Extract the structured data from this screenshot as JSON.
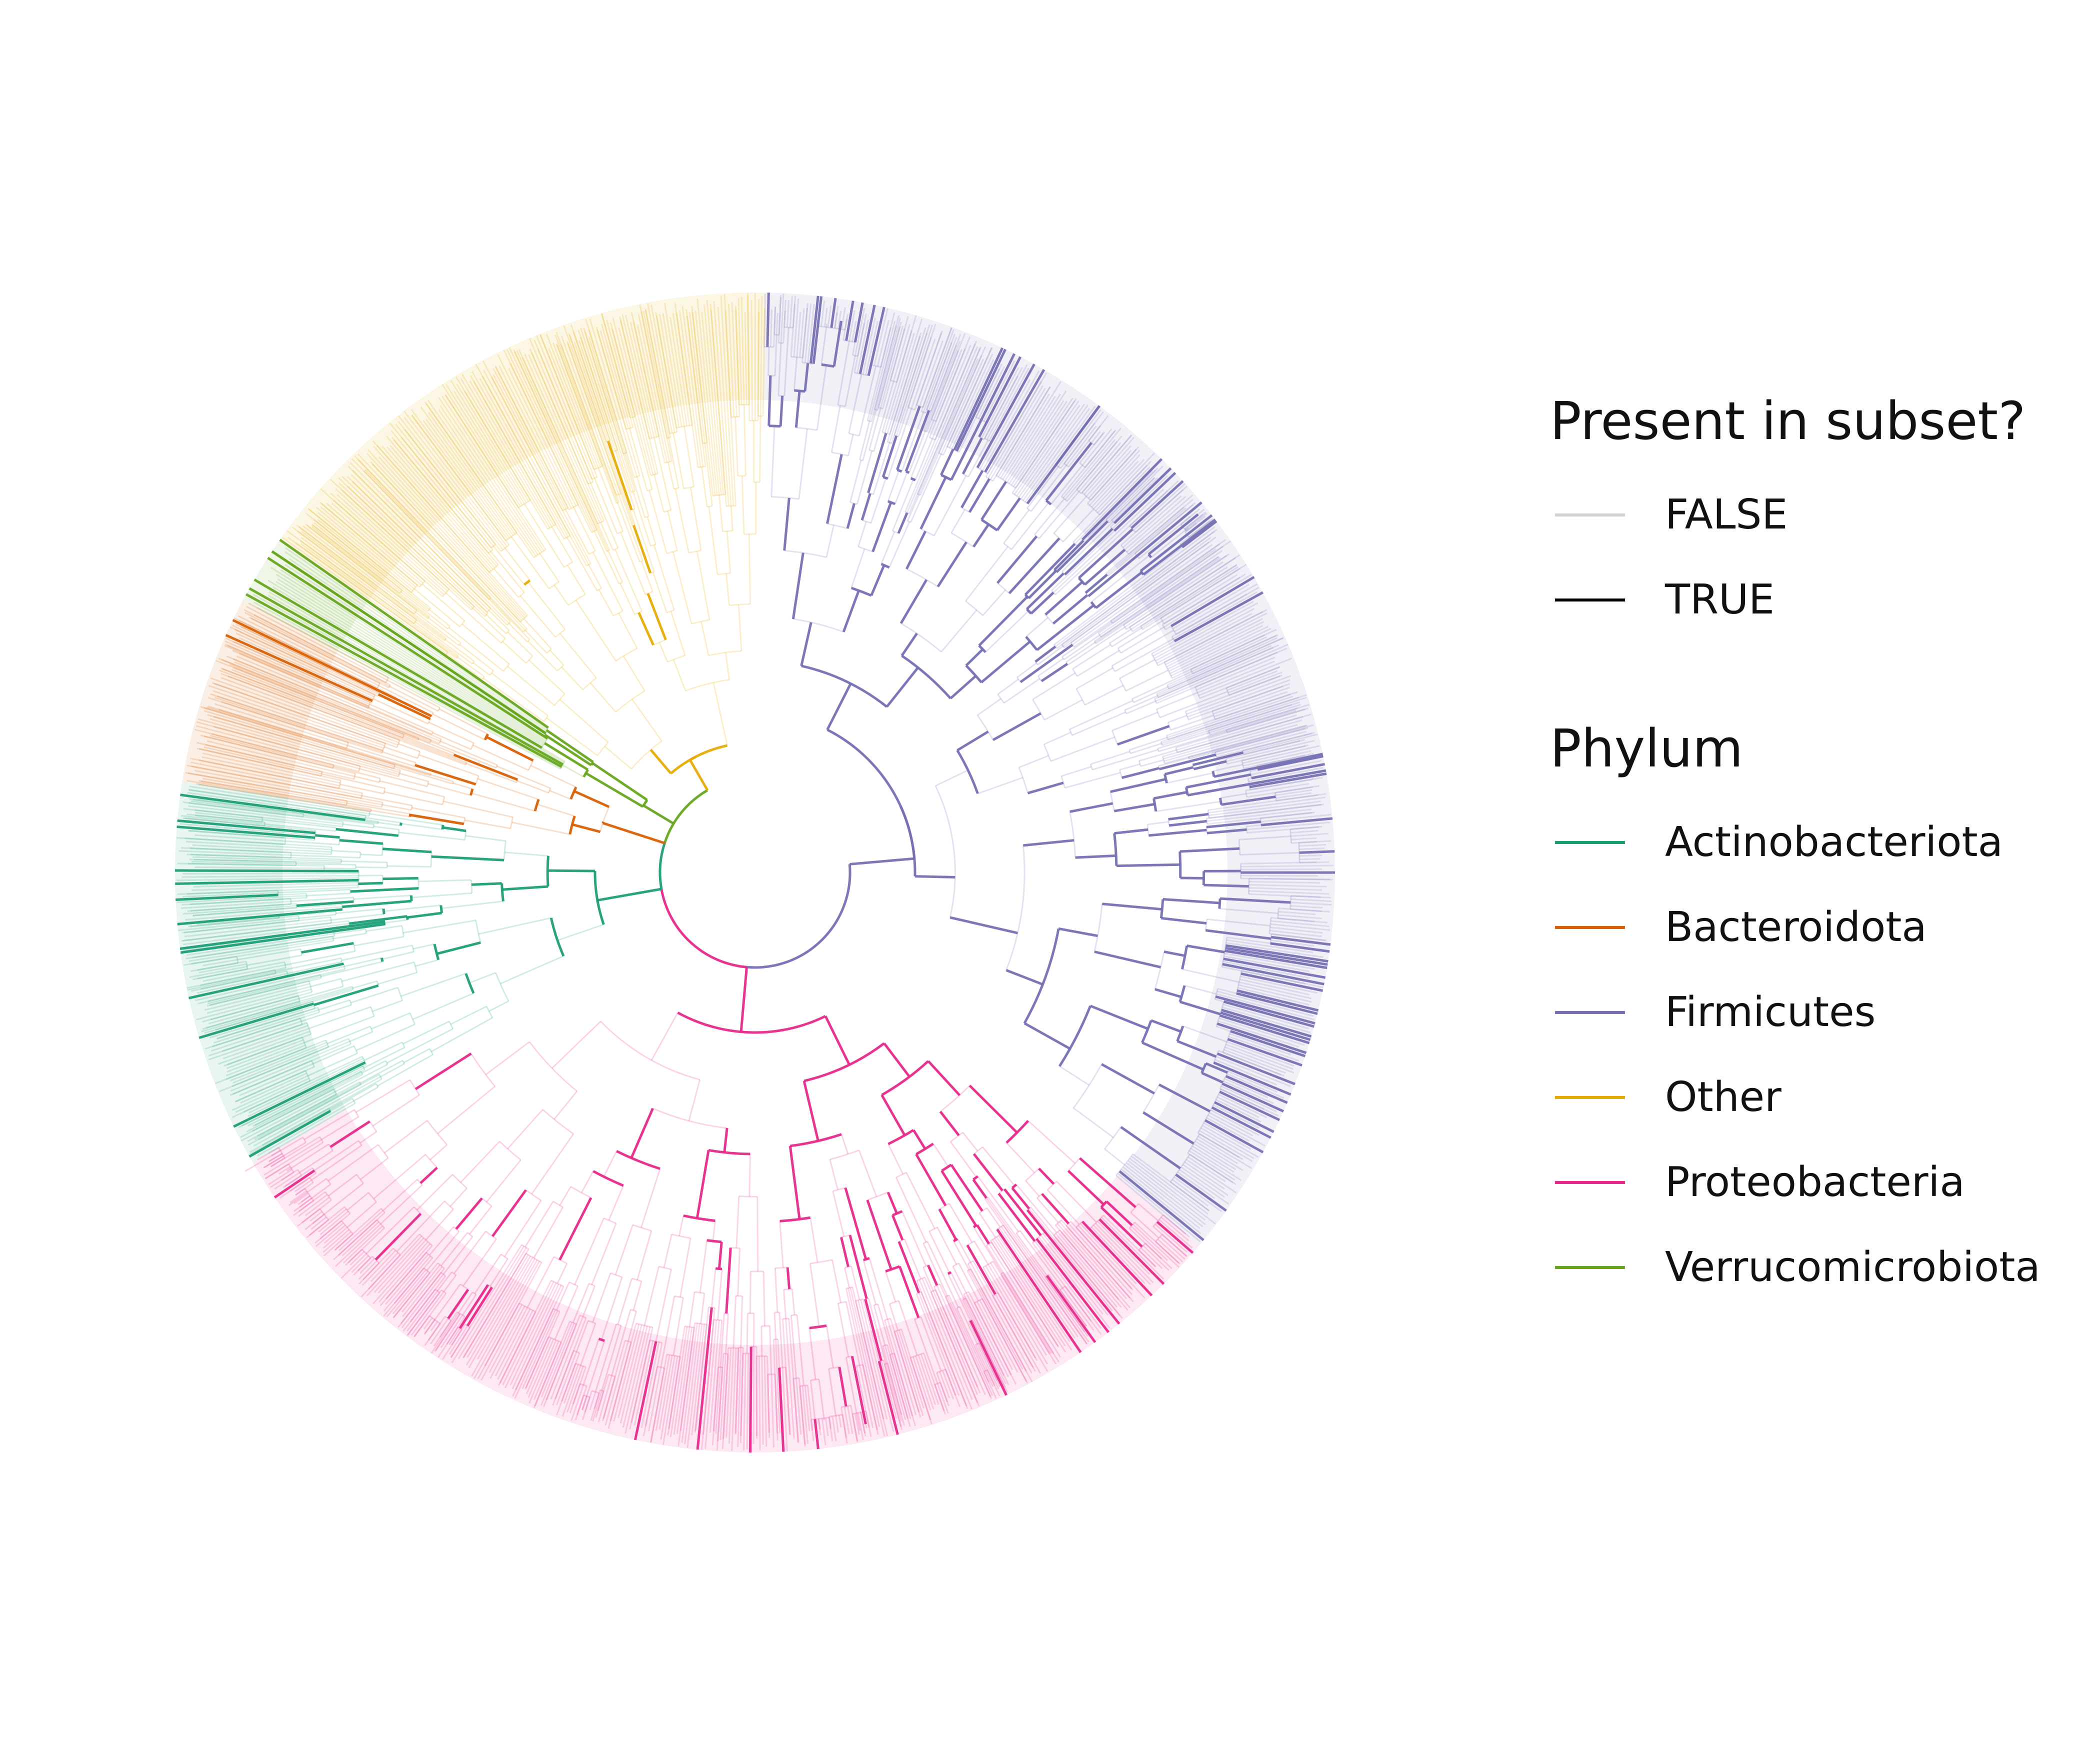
{
  "figure": {
    "type": "circular-phylogenetic-tree",
    "background": "#ffffff"
  },
  "legend_presence": {
    "title": "Present in subset?",
    "items": [
      {
        "label": "FALSE",
        "color": "#d3d3d3"
      },
      {
        "label": "TRUE",
        "color": "#000000"
      }
    ]
  },
  "legend_phylum": {
    "title": "Phylum",
    "items": [
      {
        "label": "Actinobacteriota",
        "color": "#1b9e77"
      },
      {
        "label": "Bacteroidota",
        "color": "#d95f02"
      },
      {
        "label": "Firmicutes",
        "color": "#7570b3"
      },
      {
        "label": "Other",
        "color": "#e6ab02"
      },
      {
        "label": "Proteobacteria",
        "color": "#e7298a"
      },
      {
        "label": "Verrucomicrobiota",
        "color": "#66a61e"
      }
    ]
  },
  "chart_data": {
    "type": "tree",
    "layout": "circular",
    "clades": [
      {
        "phylum": "Firmicutes",
        "color": "#7570b3",
        "share_of_tips": 0.34
      },
      {
        "phylum": "Proteobacteria",
        "color": "#e7298a",
        "share_of_tips": 0.3
      },
      {
        "phylum": "Actinobacteriota",
        "color": "#1b9e77",
        "share_of_tips": 0.14
      },
      {
        "phylum": "Bacteroidota",
        "color": "#d95f02",
        "share_of_tips": 0.07
      },
      {
        "phylum": "Verrucomicrobiota",
        "color": "#66a61e",
        "share_of_tips": 0.02
      },
      {
        "phylum": "Other",
        "color": "#e6ab02",
        "share_of_tips": 0.13
      }
    ],
    "encodings": {
      "branch_color": "Phylum",
      "branch_opacity": "Present in subset?"
    }
  }
}
